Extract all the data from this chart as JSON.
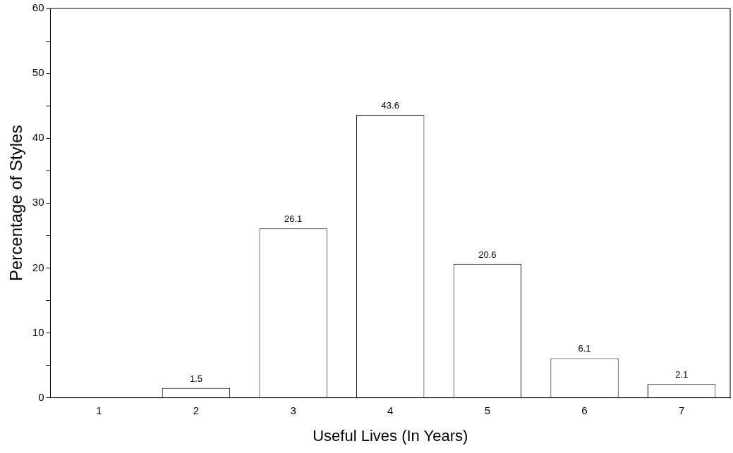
{
  "chart_data": {
    "type": "bar",
    "xlabel": "Useful Lives (In Years)",
    "ylabel": "Percentage of Styles",
    "categories": [
      "1",
      "2",
      "3",
      "4",
      "5",
      "6",
      "7"
    ],
    "values": [
      null,
      1.5,
      26.1,
      43.6,
      20.6,
      6.1,
      2.1
    ],
    "color": "#ffffff",
    "ylim": [
      0,
      60
    ],
    "yticks": [
      0,
      {
        "value": 5,
        "label": null
      },
      10,
      {
        "value": 15,
        "label": null
      },
      20,
      {
        "value": 25,
        "label": null
      },
      30,
      {
        "value": 35,
        "label": null
      },
      40,
      {
        "value": 45,
        "label": null
      },
      50,
      {
        "value": 55,
        "label": null
      },
      60
    ],
    "data_labels": true,
    "grid": false,
    "legend": false
  }
}
